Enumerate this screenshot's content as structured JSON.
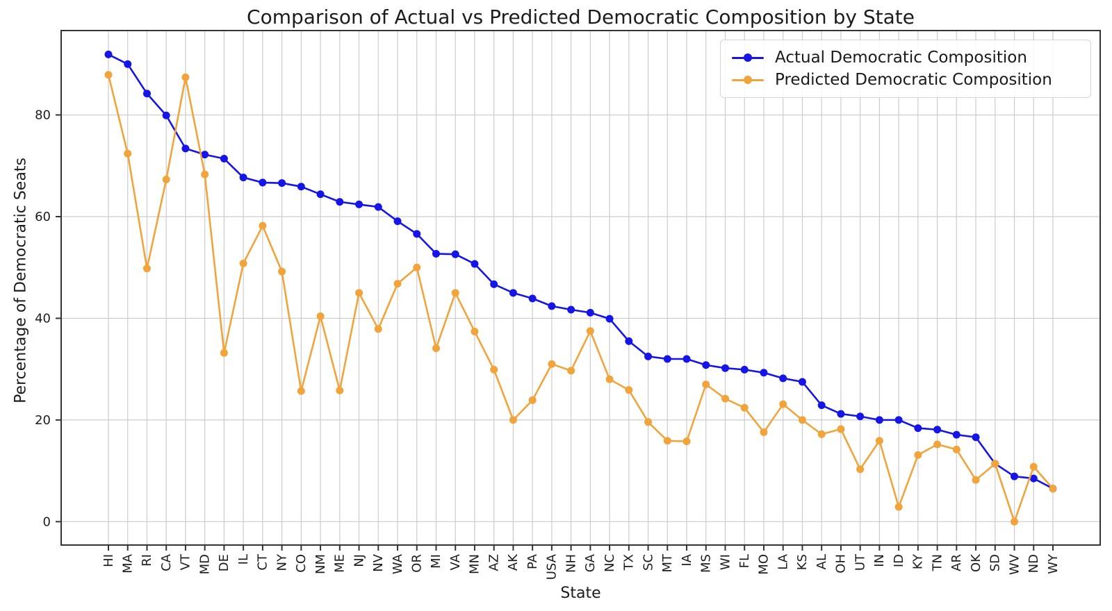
{
  "title": "Comparison of Actual vs Predicted Democratic Composition by State",
  "xlabel": "State",
  "ylabel": "Percentage of Democratic Seats",
  "colors": {
    "actual": "#1515e8",
    "predicted": "#f2a43c",
    "grid": "#cccccc",
    "spine": "#333333",
    "text": "#1c1c1c"
  },
  "chart_data": {
    "type": "line",
    "title": "Comparison of Actual vs Predicted Democratic Composition by State",
    "xlabel": "State",
    "ylabel": "Percentage of Democratic Seats",
    "categories": [
      "HI",
      "MA",
      "RI",
      "CA",
      "VT",
      "MD",
      "DE",
      "IL",
      "CT",
      "NY",
      "CO",
      "NM",
      "ME",
      "NJ",
      "NV",
      "WA",
      "OR",
      "MI",
      "VA",
      "MN",
      "AZ",
      "AK",
      "PA",
      "USA",
      "NH",
      "GA",
      "NC",
      "TX",
      "SC",
      "MT",
      "IA",
      "MS",
      "WI",
      "FL",
      "MO",
      "LA",
      "KS",
      "AL",
      "OH",
      "UT",
      "IN",
      "ID",
      "KY",
      "TN",
      "AR",
      "OK",
      "SD",
      "WV",
      "ND",
      "WY"
    ],
    "series": [
      {
        "name": "Actual Democratic Composition",
        "color": "#1515e8",
        "values": [
          91.9,
          90.0,
          84.2,
          79.9,
          73.4,
          72.2,
          71.4,
          67.7,
          66.7,
          66.6,
          65.9,
          64.4,
          62.9,
          62.4,
          61.9,
          59.1,
          56.6,
          52.7,
          52.6,
          50.7,
          46.7,
          45.0,
          43.9,
          42.4,
          41.7,
          41.1,
          39.9,
          35.5,
          32.5,
          32.0,
          32.0,
          30.8,
          30.2,
          29.9,
          29.3,
          28.2,
          27.5,
          22.9,
          21.2,
          20.7,
          20.0,
          20.0,
          18.4,
          18.1,
          17.1,
          16.6,
          11.4,
          8.9,
          8.5,
          6.5
        ]
      },
      {
        "name": "Predicted Democratic Composition",
        "color": "#f2a43c",
        "values": [
          87.9,
          72.4,
          49.8,
          67.3,
          87.4,
          68.3,
          33.2,
          50.8,
          58.2,
          49.2,
          25.7,
          40.4,
          25.8,
          45.0,
          37.9,
          46.8,
          50.0,
          34.1,
          45.0,
          37.4,
          29.9,
          20.0,
          23.9,
          31.0,
          29.7,
          37.5,
          28.0,
          25.9,
          19.6,
          15.9,
          15.8,
          27.0,
          24.2,
          22.4,
          17.6,
          23.1,
          20.0,
          17.2,
          18.2,
          10.3,
          15.9,
          2.9,
          13.1,
          15.2,
          14.2,
          8.2,
          11.4,
          0.0,
          10.8,
          6.5
        ]
      }
    ],
    "yticks": [
      0,
      20,
      40,
      60,
      80
    ],
    "ylim": [
      -4.6,
      96.6
    ],
    "grid": true,
    "legend_position": "upper right"
  }
}
